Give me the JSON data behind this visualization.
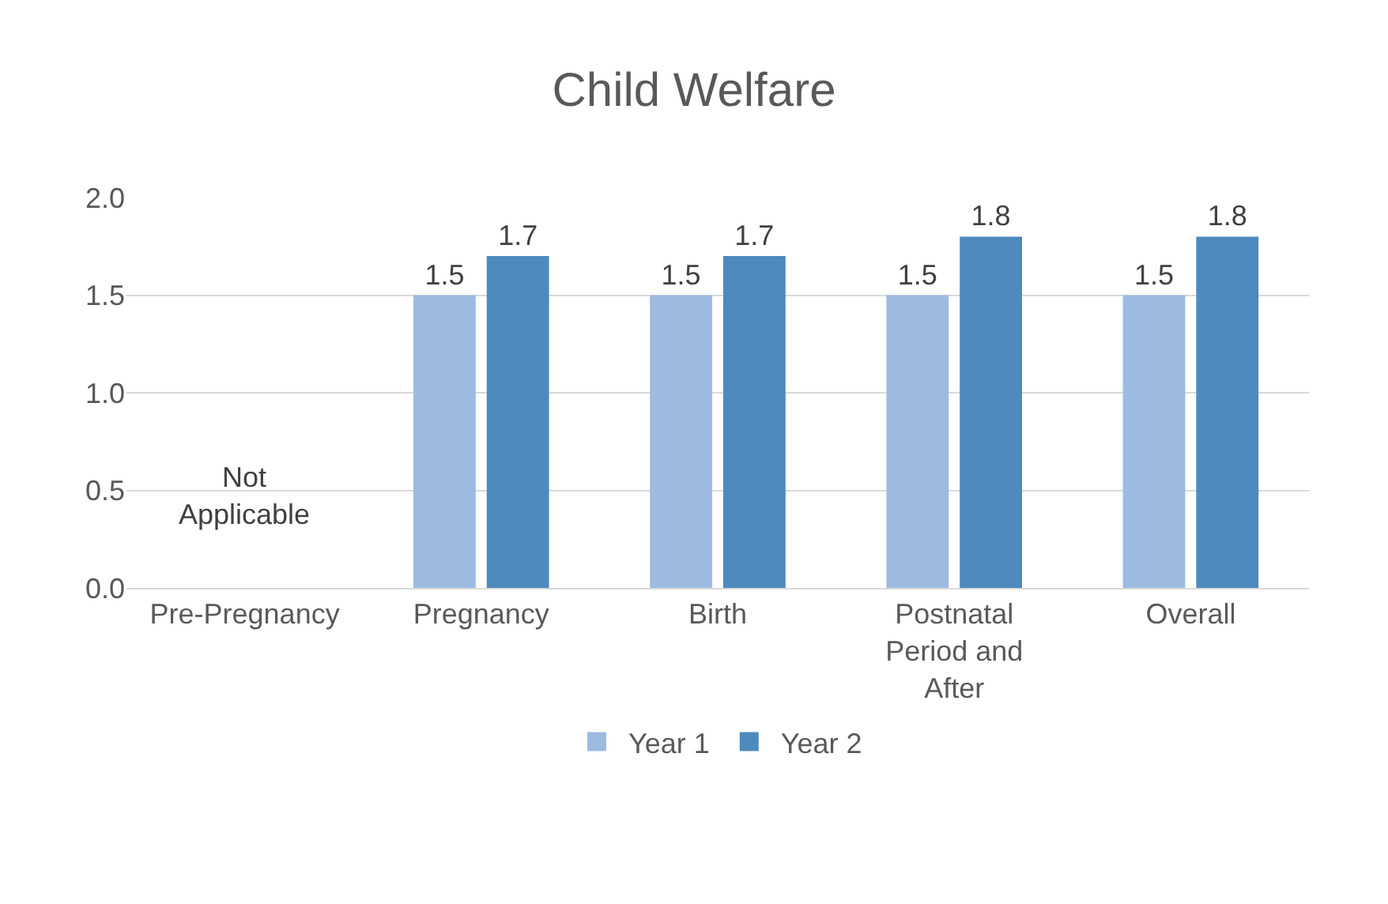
{
  "chart_data": {
    "type": "bar",
    "title": "Child Welfare",
    "categories": [
      "Pre-Pregnancy",
      "Pregnancy",
      "Birth",
      "Postnatal Period and After",
      "Overall"
    ],
    "series": [
      {
        "name": "Year 1",
        "color": "#9dbbe1",
        "values": [
          null,
          1.5,
          1.5,
          1.5,
          1.5
        ]
      },
      {
        "name": "Year 2",
        "color": "#4e8abe",
        "values": [
          null,
          1.7,
          1.7,
          1.8,
          1.8
        ]
      }
    ],
    "ylim": [
      0,
      2
    ],
    "yticks": [
      {
        "value": 0,
        "label": "0.0"
      },
      {
        "value": 0.5,
        "label": "0.5"
      },
      {
        "value": 1,
        "label": "1.0"
      },
      {
        "value": 1.5,
        "label": "1.5"
      },
      {
        "value": 2,
        "label": "2.0"
      }
    ],
    "annotations": [
      "Not Applicable"
    ],
    "data_labels": true,
    "grid": "y",
    "legend": "bottom"
  }
}
